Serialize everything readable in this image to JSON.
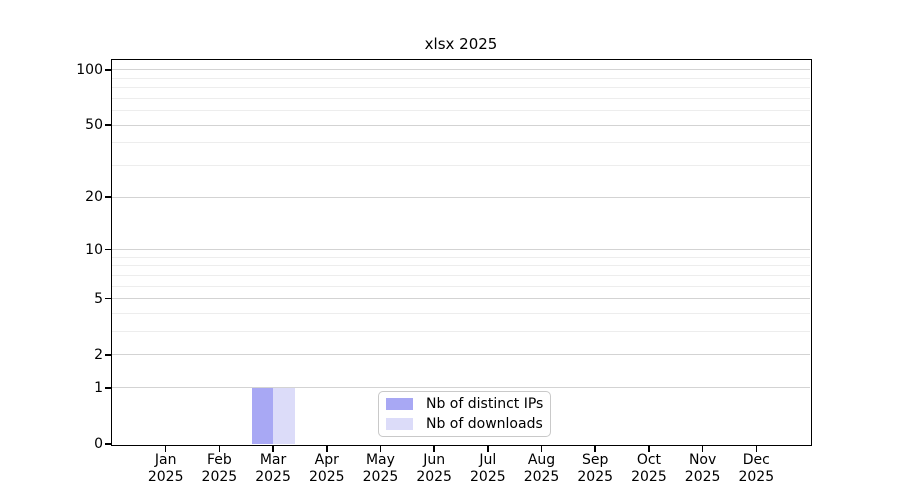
{
  "chart_data": {
    "type": "bar",
    "title": "xlsx 2025",
    "categories": [
      "Jan 2025",
      "Feb 2025",
      "Mar 2025",
      "Apr 2025",
      "May 2025",
      "Jun 2025",
      "Jul 2025",
      "Aug 2025",
      "Sep 2025",
      "Oct 2025",
      "Nov 2025",
      "Dec 2025"
    ],
    "series": [
      {
        "name": "Nb of distinct IPs",
        "color": "#a8a8f4",
        "values": [
          0,
          0,
          1,
          0,
          0,
          0,
          0,
          0,
          0,
          0,
          0,
          0
        ]
      },
      {
        "name": "Nb of downloads",
        "color": "#dcdcf9",
        "values": [
          0,
          0,
          1,
          0,
          0,
          0,
          0,
          0,
          0,
          0,
          0,
          0
        ]
      }
    ],
    "xlabel": "",
    "ylabel": "",
    "y_scale": "log1p",
    "y_ticks": [
      0,
      1,
      2,
      5,
      10,
      20,
      50,
      100
    ],
    "y_minor_gridlines": [
      3,
      4,
      6,
      7,
      8,
      9,
      30,
      40,
      60,
      70,
      80,
      90
    ],
    "ylim": [
      0,
      113
    ],
    "grid": true,
    "legend_position": "bottom-center",
    "colors": {
      "grid_major": "#d3d3d3",
      "grid_minor": "#ededed",
      "axis": "#000000",
      "background": "#ffffff",
      "legend_border": "#c9c9c9"
    }
  }
}
